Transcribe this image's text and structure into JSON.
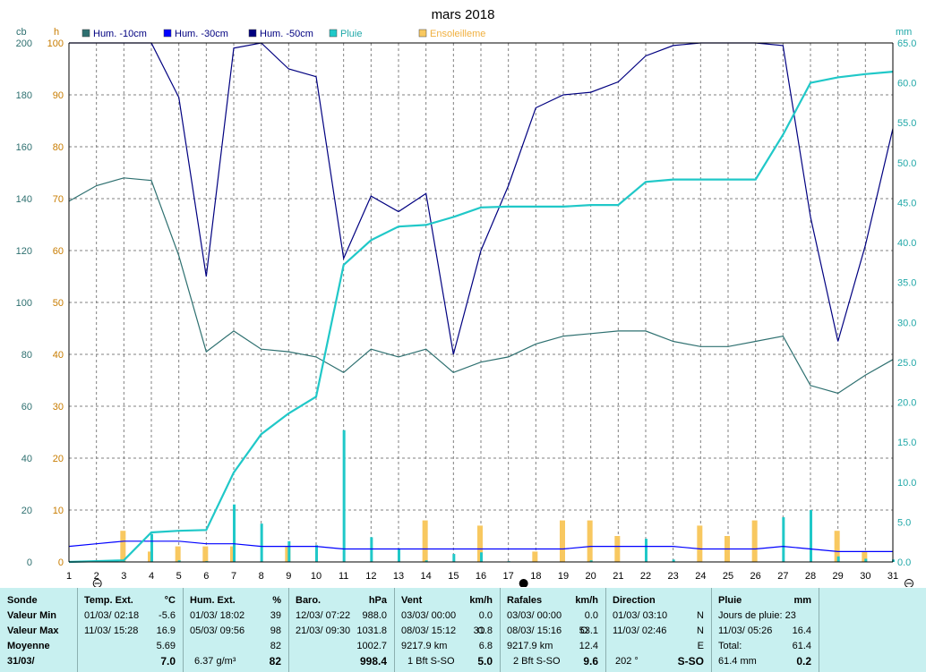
{
  "chart_data": {
    "type": "line",
    "title": "mars 2018",
    "left_unit_outer": "cb",
    "left_unit_inner": "h",
    "right_unit": "mm",
    "x_ticks": [
      1,
      2,
      3,
      4,
      5,
      6,
      7,
      8,
      9,
      10,
      11,
      12,
      13,
      14,
      15,
      16,
      17,
      18,
      19,
      20,
      21,
      22,
      23,
      24,
      25,
      26,
      27,
      28,
      29,
      30,
      31
    ],
    "y_left_outer_ticks": [
      "0",
      "20",
      "40",
      "60",
      "80",
      "100",
      "120",
      "140",
      "160",
      "180",
      "200"
    ],
    "y_left_inner_ticks": [
      "0",
      "10",
      "20",
      "30",
      "40",
      "50",
      "60",
      "70",
      "80",
      "90",
      "100"
    ],
    "y_right_ticks": [
      "0.0",
      "5.0",
      "10.0",
      "15.0",
      "20.0",
      "25.0",
      "30.0",
      "35.0",
      "40.0",
      "45.0",
      "50.0",
      "55.0",
      "60.0",
      "65.0"
    ],
    "ylim_left": [
      0,
      200
    ],
    "ylim_right": [
      0,
      65
    ],
    "grid": true,
    "legend": [
      {
        "name": "Hum. -10cm",
        "color": "#2e7070"
      },
      {
        "name": "Hum. -30cm",
        "color": "#0000ff"
      },
      {
        "name": "Hum. -50cm",
        "color": "#000080"
      },
      {
        "name": "Pluie",
        "color": "#20c8c8"
      },
      {
        "name": "Ensoleilleme",
        "color": "#f8c860"
      }
    ],
    "series": [
      {
        "name": "Hum. -10cm",
        "axis": "cb",
        "color": "#2e7070",
        "values": [
          139,
          145,
          148,
          147,
          118,
          81,
          89,
          82,
          81,
          79,
          73,
          82,
          79,
          82,
          73,
          77,
          79,
          84,
          87,
          88,
          89,
          89,
          85,
          83,
          83,
          85,
          87,
          68,
          65,
          72,
          78
        ]
      },
      {
        "name": "Hum. -30cm",
        "axis": "cb",
        "color": "#0000ff",
        "values": [
          6,
          7,
          8,
          8,
          8,
          7,
          7,
          6,
          6,
          6,
          5,
          5,
          5,
          5,
          5,
          5,
          5,
          5,
          5,
          6,
          6,
          6,
          6,
          5,
          5,
          5,
          6,
          5,
          4,
          4,
          4
        ]
      },
      {
        "name": "Hum. -50cm",
        "axis": "cb",
        "color": "#000080",
        "values": [
          200,
          200,
          200,
          200,
          179,
          110,
          198,
          200,
          190,
          187,
          117,
          141,
          135,
          142,
          80,
          120,
          145,
          175,
          180,
          181,
          185,
          195,
          199,
          200,
          200,
          200,
          199,
          133,
          85,
          122,
          167
        ]
      },
      {
        "name": "Pluie",
        "axis": "mm",
        "color": "#20c8c8",
        "values": [
          0,
          0.1,
          0.2,
          3.7,
          3.9,
          4.0,
          11.2,
          16.0,
          18.6,
          20.7,
          37.2,
          40.3,
          42.0,
          42.2,
          43.2,
          44.4,
          44.5,
          44.5,
          44.5,
          44.7,
          44.7,
          47.6,
          47.9,
          47.9,
          47.9,
          47.9,
          53.5,
          60.0,
          60.7,
          61.1,
          61.4
        ]
      }
    ],
    "bars_rain_mm": [
      0,
      0.1,
      0.1,
      3.5,
      0.2,
      0.1,
      7.2,
      4.8,
      2.6,
      2.1,
      16.5,
      3.1,
      1.7,
      0.2,
      1.0,
      1.2,
      0.1,
      0,
      0,
      0.2,
      0,
      2.9,
      0.3,
      0,
      0,
      0,
      5.6,
      6.5,
      0.7,
      0.4,
      0.3
    ],
    "bars_sun_h": [
      0,
      0,
      6,
      2,
      3,
      3,
      3,
      0,
      3,
      0,
      0,
      0,
      0,
      8,
      0,
      7,
      0,
      2,
      8,
      8,
      5,
      0,
      0,
      7,
      5,
      8,
      0,
      0,
      6,
      2,
      0
    ]
  },
  "stats": {
    "sonde": {
      "title": "Sonde",
      "rows": [
        "Valeur Min",
        "Valeur Max",
        "Moyenne",
        "31/03/"
      ]
    },
    "temp": {
      "title": "Temp. Ext.",
      "unit": "°C",
      "min_time": "01/03/  02:18",
      "min": "-5.6",
      "max_time": "11/03/  15:28",
      "max": "16.9",
      "avg": "5.69",
      "cur": "7.0"
    },
    "hum": {
      "title": "Hum. Ext.",
      "unit": "%",
      "min_time": "01/03/  18:02",
      "min": "39",
      "max_time": "05/03/  09:56",
      "max": "98",
      "avg": "82",
      "cur_extra": "6.37 g/m³",
      "cur": "82"
    },
    "baro": {
      "title": "Baro.",
      "unit": "hPa",
      "min_time": "12/03/  07:22",
      "min": "988.0",
      "max_time": "21/03/  09:30",
      "max": "1031.8",
      "avg": "1002.7",
      "cur": "998.4"
    },
    "vent": {
      "title": "Vent",
      "unit": "km/h",
      "min_time": "03/03/  00:00",
      "min": "0.0",
      "max_time": "08/03/  15:12",
      "max_dir": "O",
      "max": "31.8",
      "dist": "9217.9 km",
      "avg": "6.8",
      "cur_bft": "1 Bft S-SO",
      "cur": "5.0"
    },
    "rafales": {
      "title": "Rafales",
      "unit": "km/h",
      "min_time": "03/03/  00:00",
      "min": "0.0",
      "max_time": "08/03/  15:16",
      "max_dir": "O",
      "max": "53.1",
      "dist": "9217.9 km",
      "avg": "12.4",
      "cur_bft": "2 Bft S-SO",
      "cur": "9.6"
    },
    "direction": {
      "title": "Direction",
      "min_time": "01/03/  03:10",
      "min": "N",
      "max_time": "11/03/  02:46",
      "max": "N",
      "avg": "E",
      "cur_deg": "202 °",
      "cur": "S-SO"
    },
    "pluie": {
      "title": "Pluie",
      "unit": "mm",
      "r1": "Jours de pluie: 23",
      "max_time": "11/03/  05:26",
      "max": "16.4",
      "total_label": "Total:",
      "total": "61.4",
      "cur_total": "61.4 mm",
      "cur": "0.2"
    }
  }
}
